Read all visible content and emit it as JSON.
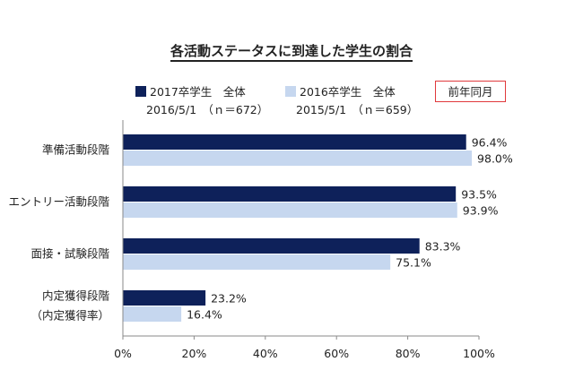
{
  "title": "各活動ステータスに到達した学生の割合",
  "callout": "前年同月",
  "colors": {
    "s2017": "#0e215a",
    "s2016": "#c6d7ef",
    "callout_border": "#e0393c"
  },
  "chart_data": {
    "type": "bar",
    "orientation": "horizontal",
    "categories": [
      [
        "準備活動段階"
      ],
      [
        "エントリー活動段階"
      ],
      [
        "面接・試験段階"
      ],
      [
        "内定獲得段階",
        "（内定獲得率）"
      ]
    ],
    "series": [
      {
        "name": "2017卒学生　全体",
        "subtitle": "2016/5/1　（ｎ＝672）",
        "values": [
          96.4,
          93.5,
          83.3,
          23.2
        ]
      },
      {
        "name": "2016卒学生　全体",
        "subtitle": "2015/5/1　（ｎ＝659）",
        "values": [
          98.0,
          93.9,
          75.1,
          16.4
        ]
      }
    ],
    "xlim": [
      0,
      100
    ],
    "xticks": [
      0,
      20,
      40,
      60,
      80,
      100
    ],
    "tick_suffix": "%",
    "legend_position": "top",
    "grid": false
  }
}
